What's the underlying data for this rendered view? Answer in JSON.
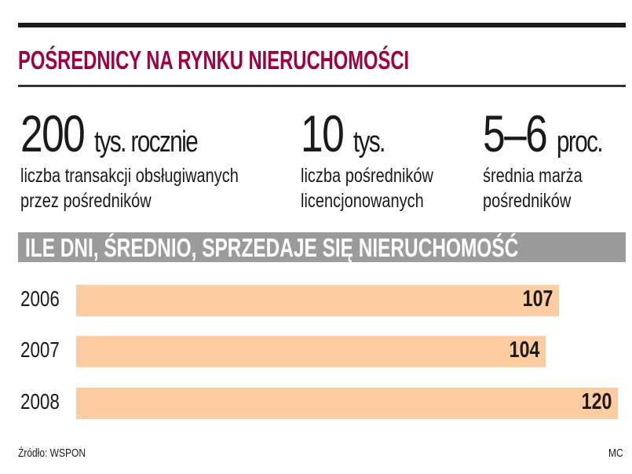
{
  "title": "POŚREDNICY NA RYNKU NIERUCHOMOŚCI",
  "stats": [
    {
      "value": "200",
      "unit": "tys. rocznie",
      "desc1": "liczba transakcji obsługiwanych",
      "desc2": "przez pośredników"
    },
    {
      "value": "10",
      "unit": "tys.",
      "desc1": "liczba pośredników",
      "desc2": "licencjonowanych"
    },
    {
      "value": "5–6",
      "unit": "proc.",
      "desc1": "średnia marża",
      "desc2": "pośredników"
    }
  ],
  "chart_data": {
    "type": "bar",
    "orientation": "horizontal",
    "title": "ILE DNI, ŚREDNIO, SPRZEDAJE SIĘ NIERUCHOMOŚĆ",
    "categories": [
      "2006",
      "2007",
      "2008"
    ],
    "values": [
      107,
      104,
      120
    ],
    "labels": [
      "107",
      "104",
      "120"
    ],
    "xlim": [
      0,
      125
    ],
    "bar_color": "#fdcca0"
  },
  "footer": {
    "source": "Źródło: WSPON",
    "author": "MC"
  },
  "colors": {
    "title": "#a3003c",
    "band": "#9b9b9b"
  }
}
